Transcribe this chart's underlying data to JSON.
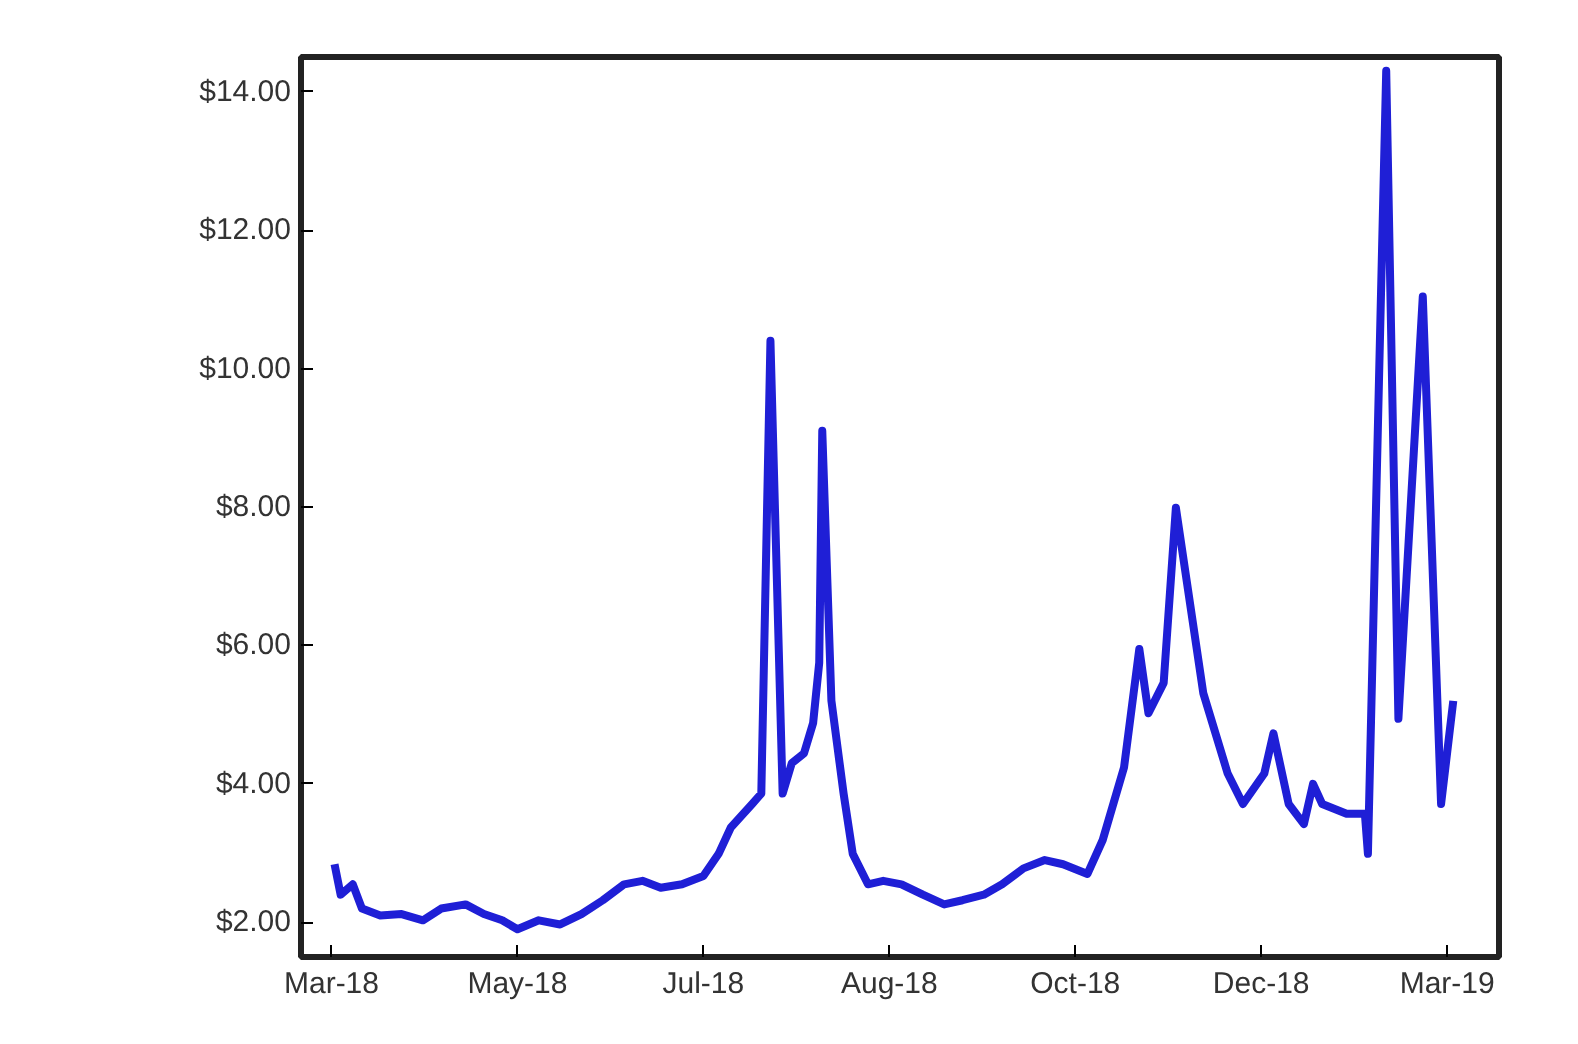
{
  "chart_data": {
    "type": "line",
    "color": "#1f1fd6",
    "x": [
      "2018-03-02",
      "2018-03-04",
      "2018-03-08",
      "2018-03-11",
      "2018-03-17",
      "2018-03-24",
      "2018-03-31",
      "2018-04-06",
      "2018-04-14",
      "2018-04-20",
      "2018-04-26",
      "2018-05-01",
      "2018-05-08",
      "2018-05-15",
      "2018-05-22",
      "2018-05-29",
      "2018-06-05",
      "2018-06-11",
      "2018-06-17",
      "2018-06-24",
      "2018-07-01",
      "2018-07-06",
      "2018-07-10",
      "2018-07-17",
      "2018-07-20",
      "2018-07-23",
      "2018-07-27",
      "2018-07-30",
      "2018-08-03",
      "2018-08-06",
      "2018-08-08",
      "2018-08-09",
      "2018-08-12",
      "2018-08-16",
      "2018-08-19",
      "2018-08-24",
      "2018-08-29",
      "2018-09-04",
      "2018-09-11",
      "2018-09-18",
      "2018-09-24",
      "2018-10-01",
      "2018-10-07",
      "2018-10-14",
      "2018-10-21",
      "2018-10-27",
      "2018-11-04",
      "2018-11-09",
      "2018-11-16",
      "2018-11-21",
      "2018-11-24",
      "2018-11-29",
      "2018-12-03",
      "2018-12-12",
      "2018-12-20",
      "2018-12-25",
      "2019-01-01",
      "2019-01-04",
      "2019-01-09",
      "2019-01-14",
      "2019-01-17",
      "2019-01-20",
      "2019-01-28",
      "2019-02-03",
      "2019-02-04",
      "2019-02-10",
      "2019-02-14",
      "2019-02-22",
      "2019-02-28",
      "2019-03-04"
    ],
    "values": [
      2.84,
      2.4,
      2.55,
      2.2,
      2.1,
      2.12,
      2.03,
      2.2,
      2.26,
      2.12,
      2.03,
      1.9,
      2.03,
      1.97,
      2.12,
      2.32,
      2.55,
      2.6,
      2.5,
      2.55,
      2.67,
      2.99,
      3.37,
      3.71,
      3.86,
      10.4,
      3.86,
      4.3,
      4.44,
      4.88,
      5.75,
      9.1,
      5.2,
      3.86,
      2.99,
      2.55,
      2.6,
      2.55,
      2.4,
      2.26,
      2.32,
      2.4,
      2.55,
      2.78,
      2.9,
      2.84,
      2.7,
      3.19,
      4.24,
      5.95,
      5.02,
      5.46,
      7.99,
      5.31,
      4.15,
      3.71,
      4.15,
      4.73,
      3.71,
      3.42,
      4.0,
      3.71,
      3.57,
      3.57,
      2.99,
      14.3,
      4.94,
      11.04,
      3.71,
      5.2
    ],
    "xlim": [
      "2018-02-19",
      "2019-03-19"
    ],
    "ylim": [
      1.5,
      14.5
    ],
    "xticks": [
      {
        "value": "2018-03-01",
        "label": "Mar-18"
      },
      {
        "value": "2018-05-01",
        "label": "May-18"
      },
      {
        "value": "2018-07-01",
        "label": "Jul-18"
      },
      {
        "value": "2018-08-31",
        "label": "Aug-18"
      },
      {
        "value": "2018-10-31",
        "label": "Oct-18"
      },
      {
        "value": "2018-12-31",
        "label": "Dec-18"
      },
      {
        "value": "2019-03-02",
        "label": "Mar-19"
      }
    ],
    "yticks": [
      {
        "value": 2,
        "label": "$2.00"
      },
      {
        "value": 4,
        "label": "$4.00"
      },
      {
        "value": 6,
        "label": "$6.00"
      },
      {
        "value": 8,
        "label": "$8.00"
      },
      {
        "value": 10,
        "label": "$10.00"
      },
      {
        "value": 12,
        "label": "$12.00"
      },
      {
        "value": 14,
        "label": "$14.00"
      }
    ],
    "grid": false,
    "line_style": "solid"
  }
}
